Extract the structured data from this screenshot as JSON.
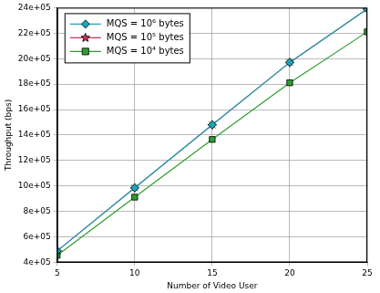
{
  "chart_data": {
    "type": "line",
    "x_label": "Number of Video User",
    "y_label": "Throughput (bps)",
    "x": [
      5,
      10,
      15,
      20,
      25
    ],
    "series": [
      {
        "name": "MQS = 10⁶ bytes",
        "color": "#17a8b8",
        "marker": "diamond",
        "line_style": "solid",
        "values": [
          490000,
          985000,
          1480000,
          1970000,
          2390000
        ]
      },
      {
        "name": "MQS = 10⁵ bytes",
        "color": "#c8325a",
        "marker": "star",
        "line_style": "solid",
        "values": [
          490000,
          985000,
          1480000,
          1970000,
          2390000
        ]
      },
      {
        "name": "MQS = 10⁴ bytes",
        "color": "#2e9e2e",
        "marker": "square",
        "line_style": "solid",
        "values": [
          455000,
          912000,
          1365000,
          1810000,
          2210000
        ]
      }
    ],
    "xlim": [
      5,
      25
    ],
    "xticks": [
      5,
      10,
      15,
      20,
      25
    ],
    "ylim": [
      400000,
      2400000
    ],
    "yticks": [
      {
        "value": 400000,
        "label": "4e+05"
      },
      {
        "value": 600000,
        "label": "6e+05"
      },
      {
        "value": 800000,
        "label": "8e+05"
      },
      {
        "value": 1000000,
        "label": "10e+05"
      },
      {
        "value": 1200000,
        "label": "12e+05"
      },
      {
        "value": 1400000,
        "label": "14e+05"
      },
      {
        "value": 1600000,
        "label": "16e+05"
      },
      {
        "value": 1800000,
        "label": "18e+05"
      },
      {
        "value": 2000000,
        "label": "20e+05"
      },
      {
        "value": 2200000,
        "label": "22e+05"
      },
      {
        "value": 2400000,
        "label": "24e+05"
      }
    ],
    "grid": true,
    "legend": "upper left"
  }
}
